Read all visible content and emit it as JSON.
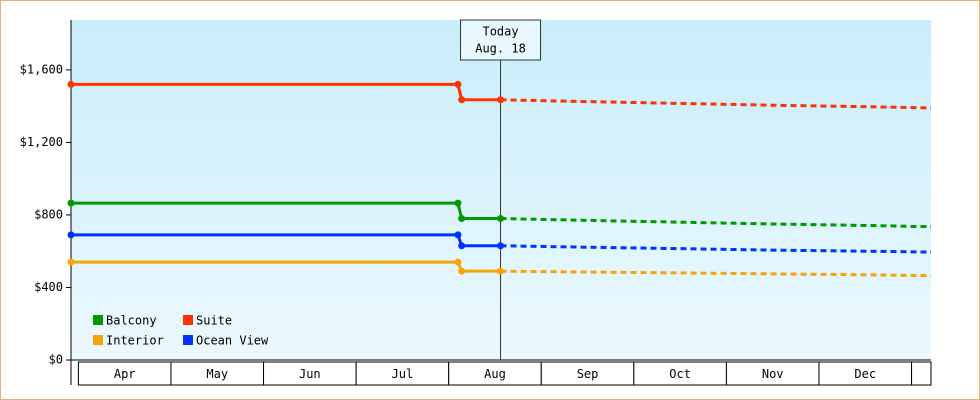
{
  "chart_data": {
    "type": "line",
    "annotation": [
      "Today",
      "Aug. 18"
    ],
    "annotation_x": 4.56,
    "categories": [
      "Apr",
      "May",
      "Jun",
      "Jul",
      "Aug",
      "Sep",
      "Oct",
      "Nov",
      "Dec"
    ],
    "xlim": [
      -0.08,
      9.21
    ],
    "ylim": [
      0,
      1875
    ],
    "yticks": [
      {
        "value": 0,
        "label": "$0"
      },
      {
        "value": 400,
        "label": "$400"
      },
      {
        "value": 800,
        "label": "$800"
      },
      {
        "value": 1200,
        "label": "$1,200"
      },
      {
        "value": 1600,
        "label": "$1,600"
      }
    ],
    "series": [
      {
        "name": "Balcony",
        "color": "#009900",
        "x": [
          -0.08,
          4.1,
          4.14,
          4.56,
          5.5,
          6.5,
          7.5,
          8.5,
          9.21
        ],
        "values": [
          865,
          865,
          780,
          780,
          770,
          760,
          750,
          742,
          735
        ]
      },
      {
        "name": "Suite",
        "color": "#ff3300",
        "x": [
          -0.08,
          4.1,
          4.14,
          4.56,
          5.5,
          6.5,
          7.5,
          8.5,
          9.21
        ],
        "values": [
          1520,
          1520,
          1435,
          1435,
          1425,
          1415,
          1405,
          1397,
          1390
        ]
      },
      {
        "name": "Interior",
        "color": "#f5a50a",
        "x": [
          -0.08,
          4.1,
          4.14,
          4.56,
          5.5,
          6.5,
          7.5,
          8.5,
          9.21
        ],
        "values": [
          540,
          540,
          490,
          490,
          485,
          480,
          475,
          470,
          465
        ]
      },
      {
        "name": "Ocean View",
        "color": "#0033ff",
        "x": [
          -0.08,
          4.1,
          4.14,
          4.56,
          5.5,
          6.5,
          7.5,
          8.5,
          9.21
        ],
        "values": [
          690,
          690,
          630,
          630,
          622,
          614,
          606,
          600,
          595
        ]
      }
    ]
  }
}
